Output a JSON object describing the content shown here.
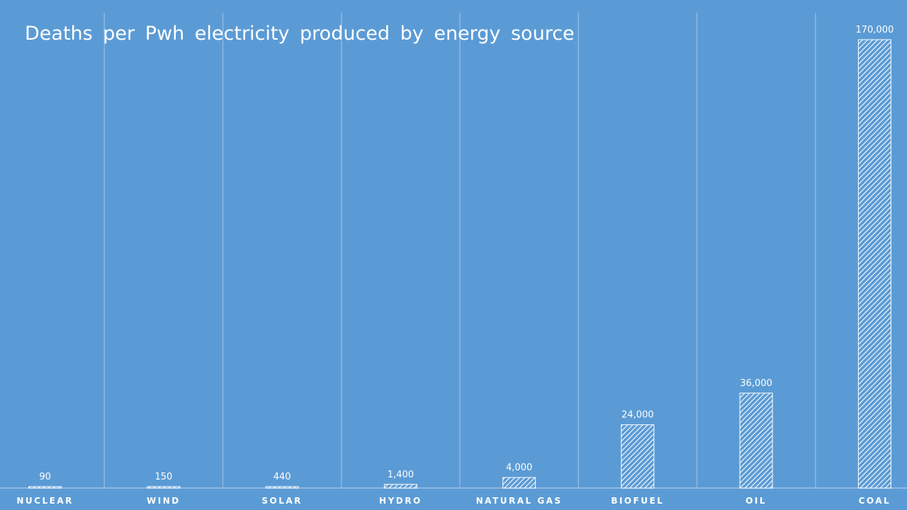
{
  "chart_data": {
    "type": "bar",
    "title": "Deaths per Pwh electricity produced by energy source",
    "xlabel": "",
    "ylabel": "",
    "categories": [
      "NUCLEAR",
      "WIND",
      "SOLAR",
      "HYDRO",
      "NATURAL GAS",
      "BIOFUEL",
      "OIL",
      "COAL"
    ],
    "values": [
      90,
      150,
      440,
      1400,
      4000,
      24000,
      36000,
      170000
    ],
    "data_labels": [
      "90",
      "150",
      "440",
      "1,400",
      "4,000",
      "24,000",
      "36,000",
      "170,000"
    ],
    "ylim": [
      0,
      170000
    ],
    "grid": true,
    "bar_fill": "diagonal-hatch",
    "bar_color": "#ffffff",
    "background_color": "#5b9bd5",
    "gridline_color": "#8cb8e3"
  }
}
